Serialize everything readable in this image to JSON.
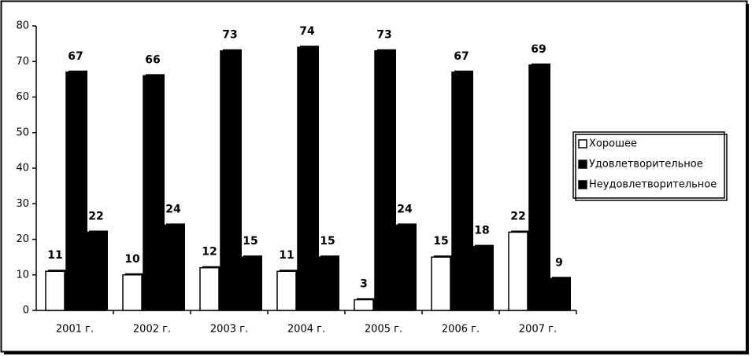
{
  "chart_data": {
    "type": "bar",
    "categories": [
      "2001 г.",
      "2002 г.",
      "2003 г.",
      "2004 г.",
      "2005 г.",
      "2006 г.",
      "2007 г."
    ],
    "series": [
      {
        "name": "Хорошее",
        "color": "#ffffff",
        "values": [
          11,
          10,
          12,
          11,
          3,
          15,
          22
        ]
      },
      {
        "name": "Удовлетворительное",
        "color": "#000000",
        "values": [
          67,
          66,
          73,
          74,
          73,
          67,
          69
        ]
      },
      {
        "name": "Неудовлетворительное",
        "color": "#000000",
        "values": [
          22,
          24,
          15,
          15,
          24,
          18,
          9
        ]
      }
    ],
    "ylim": [
      0,
      80
    ],
    "yticks": [
      0,
      10,
      20,
      30,
      40,
      50,
      60,
      70,
      80
    ],
    "grid": false,
    "legend": "right"
  }
}
